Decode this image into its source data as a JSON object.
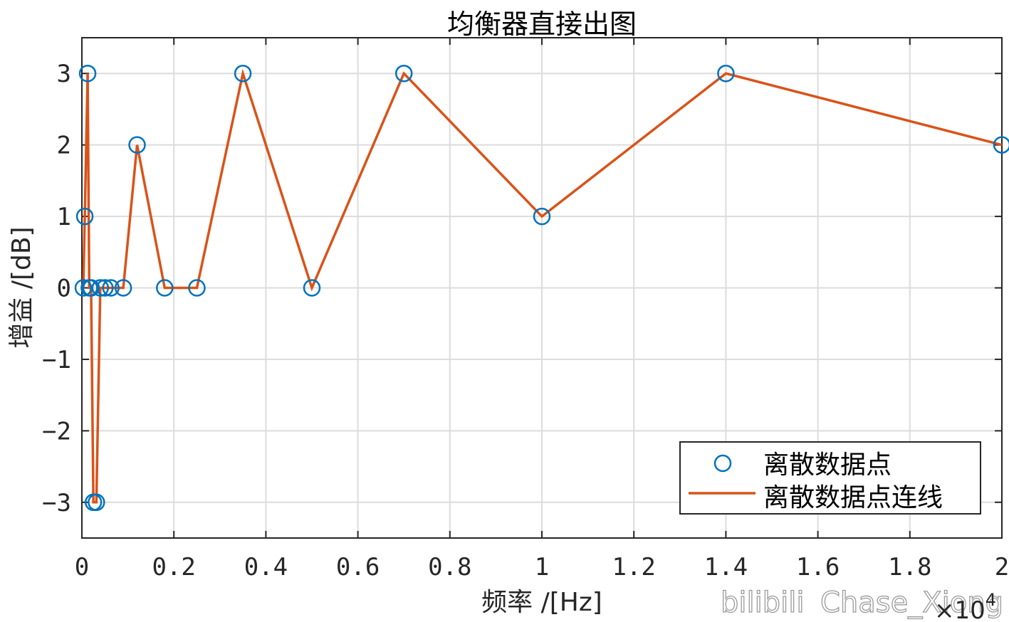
{
  "chart_data": {
    "type": "line",
    "title": "均衡器直接出图",
    "xlabel": "频率 /[Hz]",
    "ylabel": "增益 /[dB]",
    "x_exponent_label": "×10",
    "x_exponent": "4",
    "xlim": [
      0,
      2
    ],
    "ylim": [
      -3.5,
      3.5
    ],
    "xticks": [
      0,
      0.2,
      0.4,
      0.6,
      0.8,
      1,
      1.2,
      1.4,
      1.6,
      1.8,
      2
    ],
    "xtick_labels": [
      "0",
      "0.2",
      "0.4",
      "0.6",
      "0.8",
      "1",
      "1.2",
      "1.4",
      "1.6",
      "1.8",
      "2"
    ],
    "yticks": [
      -3,
      -2,
      -1,
      0,
      1,
      2,
      3
    ],
    "ytick_labels": [
      "−3",
      "−2",
      "−1",
      "0",
      "1",
      "2",
      "3"
    ],
    "grid": true,
    "legend_position": "bottom-right",
    "series": [
      {
        "name": "离散数据点",
        "style": "markers",
        "marker": "circle",
        "color": "#0072BD",
        "x": [
          0.0031,
          0.0063,
          0.0125,
          0.016,
          0.02,
          0.025,
          0.0315,
          0.04,
          0.05,
          0.063,
          0.09,
          0.12,
          0.18,
          0.25,
          0.35,
          0.5,
          0.7,
          1,
          1.4,
          2
        ],
        "y": [
          0,
          1,
          3,
          0,
          0,
          -3,
          -3,
          0,
          0,
          0,
          0,
          2,
          0,
          0,
          3,
          0,
          3,
          1,
          3,
          2
        ]
      },
      {
        "name": "离散数据点连线",
        "style": "line",
        "color": "#D95319",
        "x": [
          0.0031,
          0.0063,
          0.0125,
          0.016,
          0.02,
          0.025,
          0.0315,
          0.04,
          0.05,
          0.063,
          0.09,
          0.12,
          0.18,
          0.25,
          0.35,
          0.5,
          0.7,
          1,
          1.4,
          2
        ],
        "y": [
          0,
          1,
          3,
          0,
          0,
          -3,
          -3,
          0,
          0,
          0,
          0,
          2,
          0,
          0,
          3,
          0,
          3,
          1,
          3,
          2
        ]
      }
    ]
  },
  "watermark": {
    "text": "Chase_Xiong",
    "logo_text": "bilibili"
  }
}
